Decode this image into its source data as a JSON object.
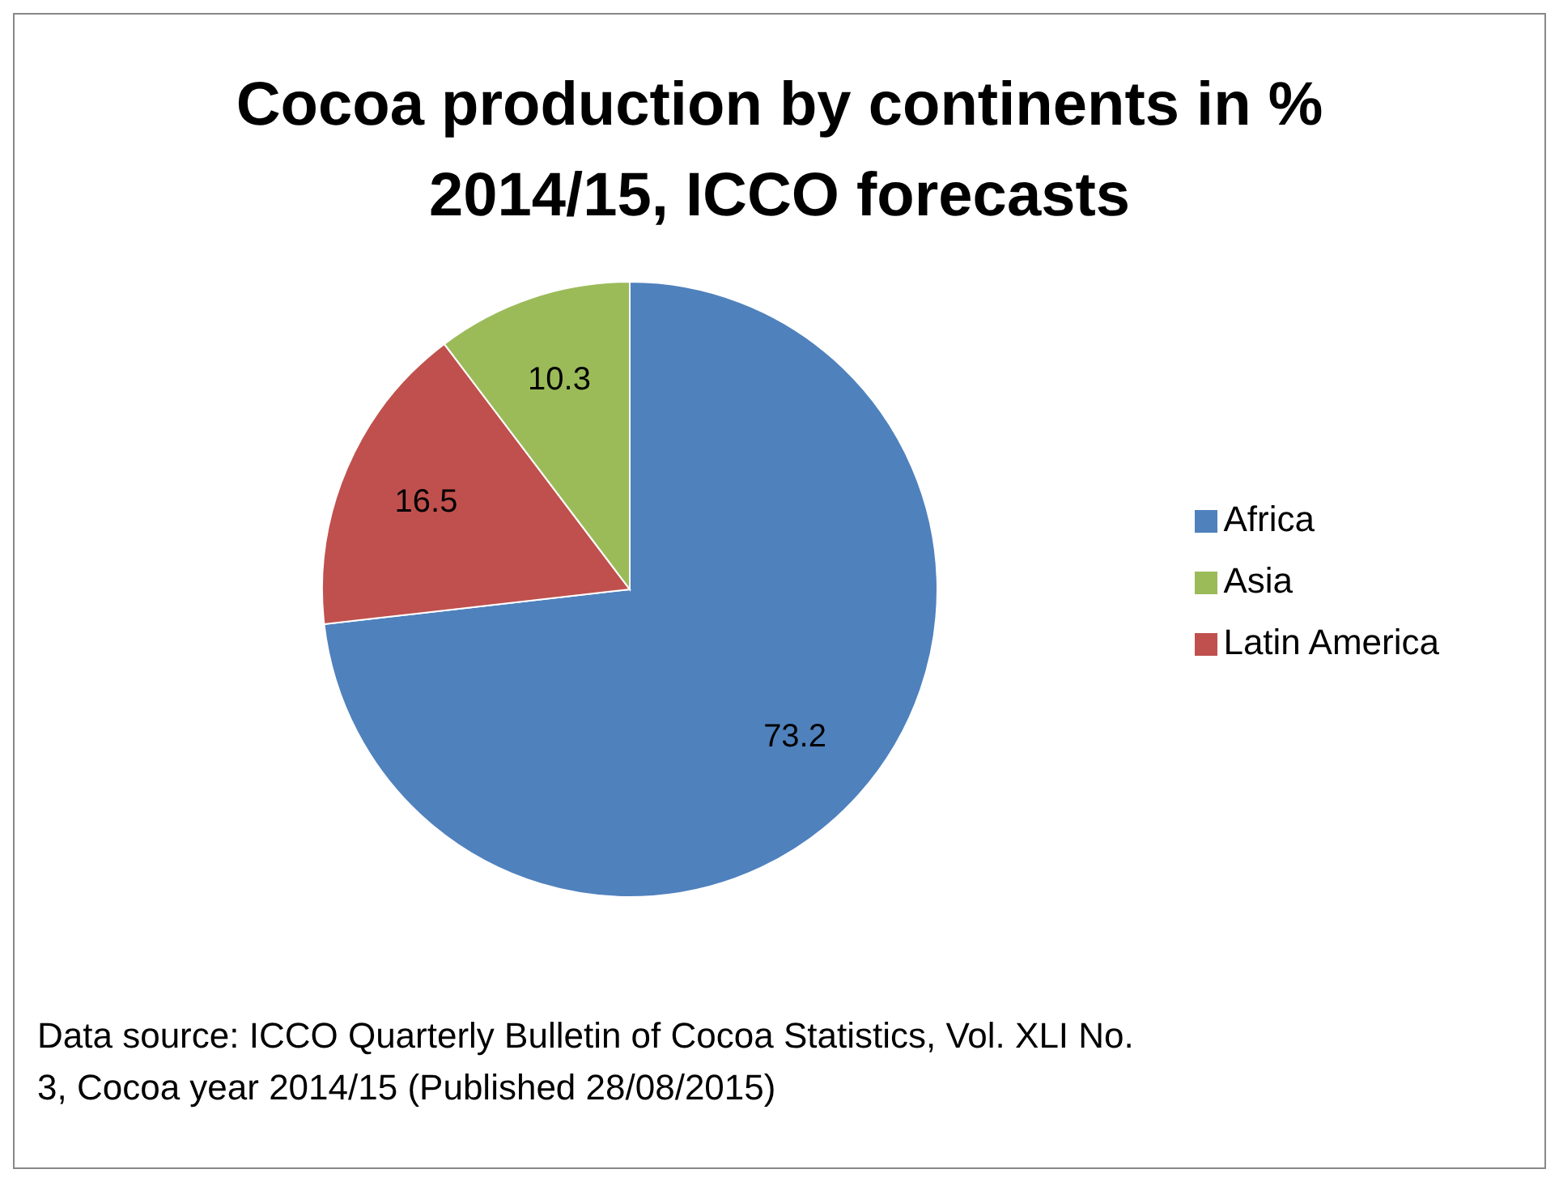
{
  "chart_data": {
    "type": "pie",
    "title": "Cocoa production by continents in % 2014/15, ICCO forecasts",
    "categories": [
      "Africa",
      "Latin America",
      "Asia"
    ],
    "values": [
      73.2,
      16.5,
      10.3
    ],
    "colors": [
      "#4f81bd",
      "#c0504d",
      "#9bbb59"
    ],
    "data_labels": true,
    "legend": "right",
    "annotations": [
      "Data source: ICCO Quarterly Bulletin of Cocoa Statistics, Vol. XLI No. 3, Cocoa year 2014/15 (Published 28/08/2015)"
    ]
  }
}
